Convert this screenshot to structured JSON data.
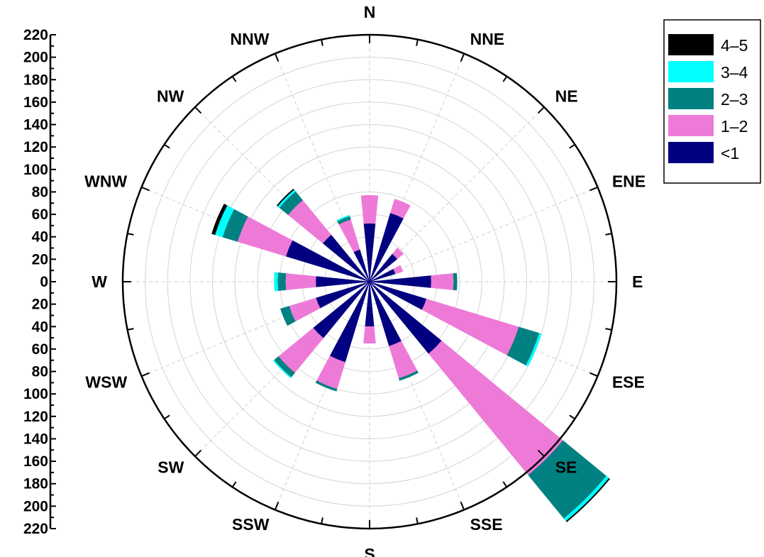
{
  "chart_data": {
    "type": "wind-rose",
    "title": "",
    "directions": [
      "N",
      "NNE",
      "NE",
      "ENE",
      "E",
      "ESE",
      "SE",
      "SSE",
      "S",
      "SSW",
      "SW",
      "WSW",
      "W",
      "WNW",
      "NW",
      "NNW"
    ],
    "series": [
      {
        "name": "<1",
        "color": "#000080",
        "values": [
          52,
          64,
          32,
          24,
          55,
          53,
          83,
          60,
          40,
          75,
          65,
          50,
          48,
          78,
          54,
          30
        ]
      },
      {
        "name": "1–2",
        "color": "#ee7ad8",
        "values": [
          25,
          13,
          7,
          7,
          20,
          86,
          140,
          30,
          15,
          25,
          40,
          25,
          27,
          45,
          40,
          28
        ]
      },
      {
        "name": "2–3",
        "color": "#008080",
        "values": [
          0,
          0,
          0,
          0,
          3,
          19,
          50,
          2,
          0,
          2,
          5,
          8,
          7,
          14,
          10,
          3
        ]
      },
      {
        "name": "3–4",
        "color": "#00ffff",
        "values": [
          0,
          0,
          0,
          0,
          0,
          2,
          3,
          0,
          0,
          0,
          1,
          0,
          3,
          7,
          2,
          1
        ]
      },
      {
        "name": "4–5",
        "color": "#000000",
        "values": [
          0,
          0,
          0,
          0,
          0,
          0,
          1,
          0,
          0,
          0,
          0,
          0,
          0,
          3,
          1,
          0
        ]
      }
    ],
    "legend_order": [
      "4–5",
      "3–4",
      "2–3",
      "1–2",
      "<1"
    ],
    "radial_axis": {
      "range": [
        0,
        220
      ],
      "major_ticks": [
        0,
        20,
        40,
        60,
        80,
        100,
        120,
        140,
        160,
        180,
        200,
        220
      ],
      "tick_labels_up": [
        "0",
        "20",
        "40",
        "60",
        "80",
        "100",
        "120",
        "140",
        "160",
        "180",
        "200",
        "220"
      ],
      "tick_labels_down": [
        "20",
        "40",
        "60",
        "80",
        "100",
        "120",
        "140",
        "160",
        "180",
        "200",
        "220"
      ]
    },
    "grid": true,
    "legend_position": "top-right"
  }
}
